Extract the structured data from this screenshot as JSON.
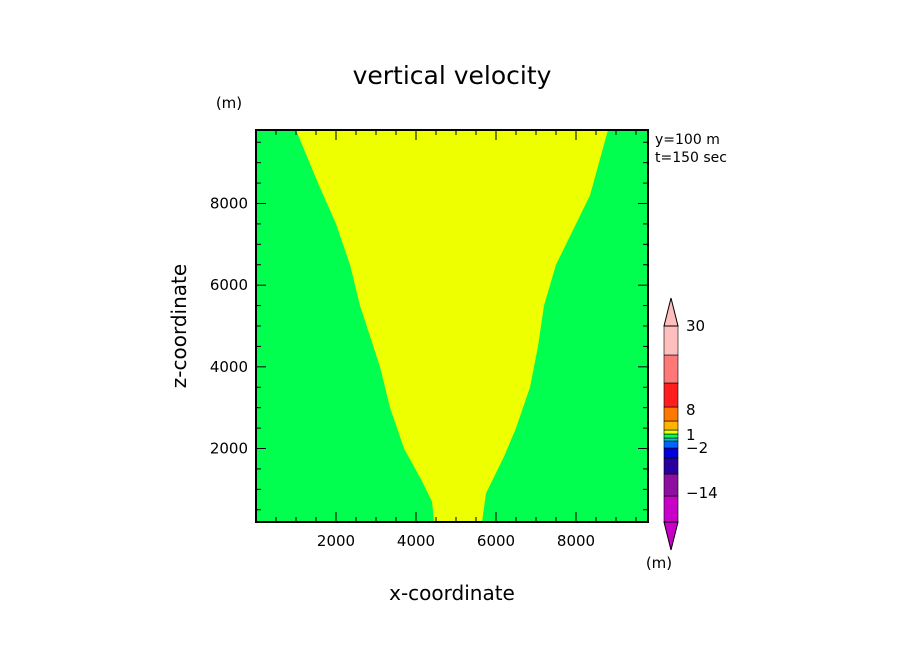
{
  "chart_data": {
    "type": "heatmap",
    "title": "vertical velocity",
    "xlabel": "x-coordinate",
    "ylabel": "z-coordinate",
    "y_unit": "(m)",
    "colorbar_unit": "(m)",
    "xlim": [
      0,
      9800
    ],
    "ylim": [
      200,
      9800
    ],
    "x_ticks": [
      2000,
      4000,
      6000,
      8000
    ],
    "y_ticks": [
      2000,
      4000,
      6000,
      8000
    ],
    "annotations": [
      "y=100 m",
      "t=150 sec"
    ],
    "grid": false,
    "regions": [
      {
        "color": "#00ff4f",
        "bounds": "full domain"
      },
      {
        "color": "#eeff00",
        "left_boundary": [
          [
            4450,
            200
          ],
          [
            4400,
            700
          ],
          [
            4150,
            1200
          ],
          [
            3700,
            2000
          ],
          [
            3350,
            3000
          ],
          [
            3100,
            4000
          ],
          [
            2600,
            5500
          ],
          [
            2350,
            6500
          ],
          [
            2000,
            7500
          ],
          [
            1550,
            8500
          ],
          [
            1000,
            9800
          ]
        ],
        "right_boundary": [
          [
            5650,
            200
          ],
          [
            5750,
            900
          ],
          [
            6200,
            1800
          ],
          [
            6500,
            2500
          ],
          [
            6850,
            3500
          ],
          [
            7050,
            4500
          ],
          [
            7200,
            5500
          ],
          [
            7500,
            6500
          ],
          [
            7900,
            7300
          ],
          [
            8350,
            8200
          ],
          [
            8800,
            9800
          ]
        ]
      }
    ],
    "colorbar": {
      "levels_bottom_to_top": [
        {
          "color": "#c800c8"
        },
        {
          "color": "#8c0fa0"
        },
        {
          "color": "#2800a0"
        },
        {
          "color": "#0000dc"
        },
        {
          "color": "#0064ff"
        },
        {
          "color": "#00c8c8"
        },
        {
          "color": "#00ff4f"
        },
        {
          "color": "#eeff00"
        },
        {
          "color": "#ffb400"
        },
        {
          "color": "#ff7800"
        },
        {
          "color": "#ff1e1e"
        },
        {
          "color": "#ff7878"
        },
        {
          "color": "#ffbebe"
        }
      ],
      "labels": [
        "-14",
        "-2",
        "1",
        "8",
        "30"
      ]
    }
  }
}
